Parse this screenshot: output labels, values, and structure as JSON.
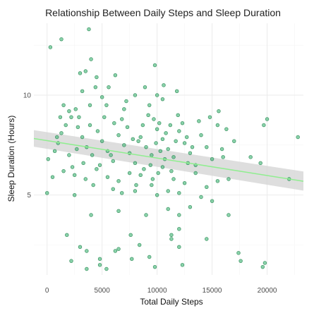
{
  "chart_data": {
    "type": "scatter",
    "title": "Relationship Between Daily Steps and Sleep Duration",
    "xlabel": "Total Daily Steps",
    "ylabel": "Sleep Duration (Hours)",
    "xlim": [
      -1200,
      23300
    ],
    "ylim": [
      1.0,
      13.6
    ],
    "x_ticks": [
      0,
      5000,
      10000,
      15000,
      20000
    ],
    "y_ticks": [
      5,
      10
    ],
    "grid": true,
    "colors": {
      "point_fill": "#3cb371",
      "point_stroke": "#2e8b57",
      "trend_line": "#90ee90",
      "confidence_band": "#d3d3d3",
      "grid": "#ebebeb"
    },
    "trend": {
      "x": [
        -1200,
        23300
      ],
      "y": [
        7.83,
        5.69
      ],
      "band_upper": [
        8.25,
        6.18
      ],
      "band_lower": [
        7.42,
        5.22
      ]
    },
    "points": [
      [
        300,
        12.4
      ],
      [
        1300,
        12.8
      ],
      [
        3800,
        13.3
      ],
      [
        4000,
        11.8
      ],
      [
        9800,
        11.5
      ],
      [
        3000,
        11.1
      ],
      [
        3500,
        11.2
      ],
      [
        4500,
        10.9
      ],
      [
        6200,
        11.0
      ],
      [
        3200,
        10.2
      ],
      [
        4400,
        10.4
      ],
      [
        5600,
        10.4
      ],
      [
        8000,
        10.0
      ],
      [
        10000,
        10.0
      ],
      [
        11800,
        10.2
      ],
      [
        2000,
        9.2
      ],
      [
        2600,
        9.3
      ],
      [
        3900,
        9.5
      ],
      [
        5400,
        9.5
      ],
      [
        7000,
        9.3
      ],
      [
        9300,
        9.5
      ],
      [
        10500,
        9.8
      ],
      [
        15600,
        9.2
      ],
      [
        20000,
        8.8
      ],
      [
        22800,
        7.9
      ],
      [
        100,
        6.8
      ],
      [
        700,
        7.2
      ],
      [
        1000,
        7.6
      ],
      [
        1300,
        8.1
      ],
      [
        1700,
        8.5
      ],
      [
        2200,
        8.9
      ],
      [
        2800,
        8.4
      ],
      [
        3200,
        7.9
      ],
      [
        3600,
        7.4
      ],
      [
        4100,
        7.0
      ],
      [
        4600,
        8.2
      ],
      [
        5000,
        7.7
      ],
      [
        5500,
        7.2
      ],
      [
        6000,
        6.7
      ],
      [
        6500,
        8.0
      ],
      [
        7000,
        7.5
      ],
      [
        7500,
        7.1
      ],
      [
        8000,
        6.6
      ],
      [
        8500,
        7.9
      ],
      [
        9000,
        7.4
      ],
      [
        9500,
        7.0
      ],
      [
        10000,
        8.3
      ],
      [
        10500,
        7.8
      ],
      [
        11000,
        7.3
      ],
      [
        11500,
        6.9
      ],
      [
        12000,
        8.2
      ],
      [
        12500,
        7.6
      ],
      [
        13000,
        7.1
      ],
      [
        13500,
        6.5
      ],
      [
        14000,
        8.0
      ],
      [
        14500,
        7.4
      ],
      [
        15000,
        6.8
      ],
      [
        15500,
        8.5
      ],
      [
        16000,
        6.9
      ],
      [
        500,
        5.9
      ],
      [
        1500,
        6.2
      ],
      [
        2500,
        6.0
      ],
      [
        3500,
        5.8
      ],
      [
        4500,
        6.3
      ],
      [
        5500,
        5.9
      ],
      [
        6500,
        5.7
      ],
      [
        7500,
        6.1
      ],
      [
        8500,
        6.0
      ],
      [
        9500,
        5.5
      ],
      [
        10500,
        6.4
      ],
      [
        11500,
        5.8
      ],
      [
        12500,
        5.6
      ],
      [
        13500,
        6.1
      ],
      [
        14500,
        5.4
      ],
      [
        15500,
        5.7
      ],
      [
        16500,
        5.8
      ],
      [
        0,
        5.1
      ],
      [
        2500,
        5.0
      ],
      [
        6000,
        5.3
      ],
      [
        8000,
        5.2
      ],
      [
        10000,
        5.0
      ],
      [
        11000,
        5.2
      ],
      [
        12000,
        5.1
      ],
      [
        14000,
        4.9
      ],
      [
        15000,
        4.7
      ],
      [
        4000,
        4.0
      ],
      [
        6500,
        4.2
      ],
      [
        9000,
        4.0
      ],
      [
        11000,
        4.3
      ],
      [
        12000,
        4.0
      ],
      [
        13000,
        4.4
      ],
      [
        16500,
        4.0
      ],
      [
        1800,
        3.0
      ],
      [
        7600,
        3.0
      ],
      [
        11300,
        3.0
      ],
      [
        12000,
        3.3
      ],
      [
        3000,
        2.4
      ],
      [
        3600,
        2.2
      ],
      [
        6500,
        2.3
      ],
      [
        8400,
        2.5
      ],
      [
        11300,
        2.8
      ],
      [
        14500,
        2.8
      ],
      [
        2200,
        1.7
      ],
      [
        4800,
        1.8
      ],
      [
        6200,
        2.2
      ],
      [
        7700,
        1.8
      ],
      [
        9300,
        1.9
      ],
      [
        12000,
        2.4
      ],
      [
        17400,
        2.1
      ],
      [
        19600,
        1.4
      ],
      [
        3600,
        1.3
      ],
      [
        4800,
        1.5
      ],
      [
        5400,
        1.3
      ],
      [
        9800,
        1.4
      ],
      [
        12300,
        1.5
      ],
      [
        17600,
        1.7
      ],
      [
        19800,
        1.6
      ],
      [
        22000,
        5.8
      ],
      [
        8300,
        7.7
      ],
      [
        8700,
        8.5
      ],
      [
        9200,
        9.0
      ],
      [
        9700,
        8.8
      ],
      [
        10200,
        8.6
      ],
      [
        10800,
        8.1
      ],
      [
        11200,
        8.5
      ],
      [
        9900,
        7.6
      ],
      [
        10300,
        7.2
      ],
      [
        10700,
        6.8
      ],
      [
        11700,
        7.7
      ],
      [
        12300,
        8.6
      ],
      [
        12700,
        7.9
      ],
      [
        13200,
        7.4
      ],
      [
        9400,
        6.5
      ],
      [
        8800,
        6.3
      ],
      [
        10100,
        6.1
      ],
      [
        11300,
        6.2
      ],
      [
        12800,
        6.6
      ],
      [
        2000,
        7.0
      ],
      [
        1200,
        8.9
      ],
      [
        2900,
        8.9
      ],
      [
        3900,
        8.5
      ],
      [
        5200,
        8.9
      ],
      [
        6800,
        8.8
      ],
      [
        7300,
        8.4
      ],
      [
        6100,
        8.6
      ],
      [
        4800,
        6.5
      ],
      [
        3300,
        6.6
      ],
      [
        2700,
        7.3
      ],
      [
        5800,
        7.0
      ],
      [
        7800,
        7.8
      ],
      [
        14800,
        8.9
      ],
      [
        16300,
        8.3
      ],
      [
        17000,
        7.7
      ],
      [
        19700,
        8.5
      ],
      [
        18500,
        6.9
      ],
      [
        19400,
        6.6
      ],
      [
        13800,
        8.7
      ],
      [
        8100,
        5.5
      ],
      [
        6800,
        5.1
      ],
      [
        4200,
        5.5
      ],
      [
        2300,
        6.4
      ],
      [
        900,
        7.9
      ],
      [
        11900,
        9.0
      ],
      [
        10600,
        10.5
      ],
      [
        5000,
        9.9
      ],
      [
        1500,
        9.5
      ],
      [
        8900,
        10.4
      ],
      [
        7200,
        9.7
      ],
      [
        9600,
        5.8
      ],
      [
        15900,
        7.3
      ]
    ]
  }
}
